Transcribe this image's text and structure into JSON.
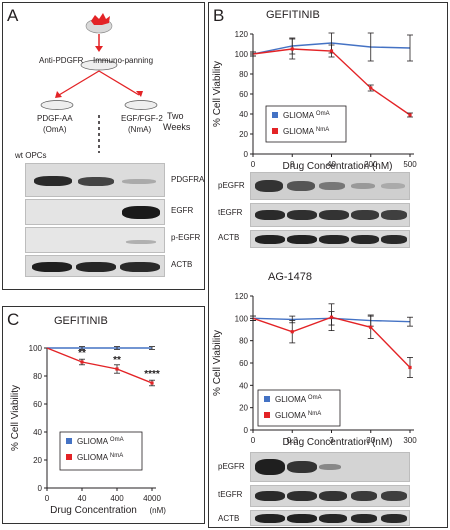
{
  "panels": {
    "A": "A",
    "B": "B",
    "C": "C"
  },
  "schematic": {
    "anti_pdgfr": "Anti-PDGFR",
    "immuno": "Immuno-panning",
    "dish_left_1": "PDGF-AA",
    "dish_left_2": "(OmA)",
    "dish_right_1": "EGF/FGF-2",
    "dish_right_2": "(NmA)",
    "two": "Two",
    "weeks": "Weeks",
    "wt_opcs": "wt OPCs",
    "blot_labels": [
      "PDGFRA",
      "EGFR",
      "p-EGFR",
      "ACTB"
    ]
  },
  "blot_B1": [
    "pEGFR",
    "tEGFR",
    "ACTB"
  ],
  "blot_B2": [
    "pEGFR",
    "tEGFR",
    "ACTB"
  ],
  "colors": {
    "blue": "#4472c4",
    "red": "#e32326"
  },
  "chart_data": [
    {
      "id": "B-top",
      "type": "line",
      "title": "GEFITINIB",
      "xlabel": "Drug Concentration (nM)",
      "ylabel": "% Cell Viability",
      "categories": [
        "0",
        "8",
        "40",
        "200",
        "500"
      ],
      "ylim": [
        0,
        120
      ],
      "yticks": [
        "0",
        "20",
        "40",
        "60",
        "80",
        "100",
        "120"
      ],
      "legend_position": "center",
      "series": [
        {
          "name": "GLIOMA",
          "sup": "OmA",
          "color": "#4472c4",
          "values": [
            100,
            108,
            111,
            107,
            106
          ],
          "errors": [
            2,
            8,
            10,
            14,
            13
          ]
        },
        {
          "name": "GLIOMA",
          "sup": "NmA",
          "color": "#e32326",
          "values": [
            100,
            105,
            103,
            66,
            39
          ],
          "errors": [
            2,
            10,
            6,
            3,
            2
          ]
        }
      ]
    },
    {
      "id": "B-bottom",
      "type": "line",
      "title": "AG-1478",
      "xlabel": "Drug Concentration (nM)",
      "ylabel": "% Cell Viability",
      "categories": [
        "0",
        "0.3",
        "3",
        "30",
        "300"
      ],
      "ylim": [
        0,
        120
      ],
      "yticks": [
        "0",
        "20",
        "40",
        "60",
        "80",
        "100",
        "120"
      ],
      "legend_position": "center",
      "series": [
        {
          "name": "GLIOMA",
          "sup": "OmA",
          "color": "#4472c4",
          "values": [
            100,
            99,
            100,
            98,
            97
          ],
          "errors": [
            2,
            3,
            6,
            5,
            4
          ]
        },
        {
          "name": "GLIOMA",
          "sup": "NmA",
          "color": "#e32326",
          "values": [
            100,
            88,
            101,
            92,
            56
          ],
          "errors": [
            2,
            10,
            12,
            10,
            9
          ]
        }
      ]
    },
    {
      "id": "C",
      "type": "line",
      "title": "GEFITINIB",
      "xlabel": "Drug Concentration",
      "xlabel_unit": "(nM)",
      "ylabel": "% Cell Viability",
      "categories": [
        "0",
        "40",
        "400",
        "4000"
      ],
      "ylim": [
        0,
        100
      ],
      "yticks": [
        "0",
        "20",
        "40",
        "60",
        "80",
        "100"
      ],
      "legend_position": "center",
      "annotations": [
        "**",
        "**",
        "****"
      ],
      "series": [
        {
          "name": "GLIOMA",
          "sup": "OmA",
          "color": "#4472c4",
          "values": [
            100,
            100,
            100,
            100
          ],
          "errors": [
            0,
            1,
            1,
            1
          ]
        },
        {
          "name": "GLIOMA",
          "sup": "NmA",
          "color": "#e32326",
          "values": [
            100,
            90,
            85,
            75
          ],
          "errors": [
            0,
            2,
            3,
            2
          ]
        }
      ]
    }
  ]
}
